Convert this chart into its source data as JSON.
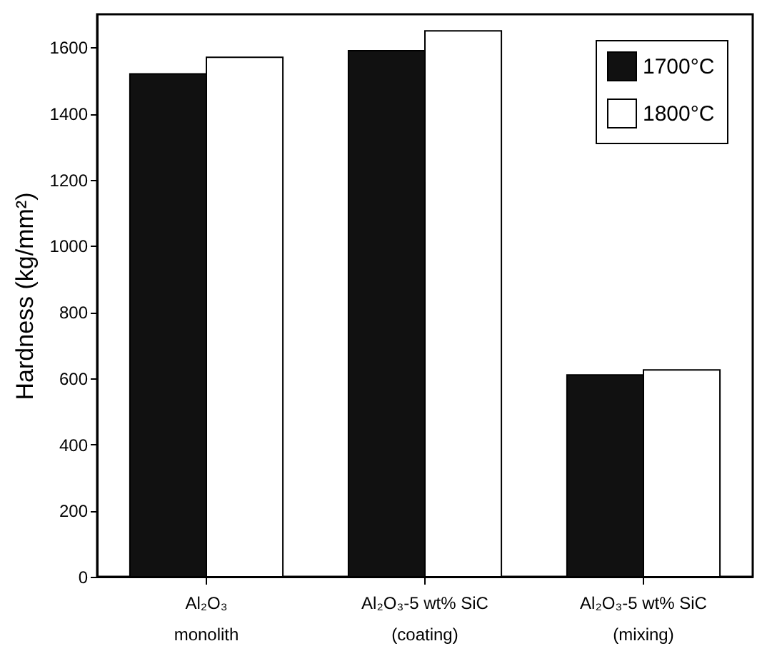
{
  "chart_data": {
    "type": "bar",
    "ylabel": "Hardness (kg/mm²)",
    "categories": [
      "Al₂O₃\nmonolith",
      "Al₂O₃-5 wt% SiC\n(coating)",
      "Al₂O₃-5 wt% SiC\n(mixing)"
    ],
    "series": [
      {
        "name": "1700°C",
        "color": "#111111",
        "values": [
          1520,
          1590,
          610
        ]
      },
      {
        "name": "1800°C",
        "color": "#ffffff",
        "values": [
          1570,
          1650,
          625
        ]
      }
    ],
    "ylim": [
      0,
      1700
    ],
    "yticks": [
      0,
      200,
      400,
      600,
      800,
      1000,
      1200,
      1400,
      1600
    ],
    "grid": false,
    "legend": "top right"
  }
}
